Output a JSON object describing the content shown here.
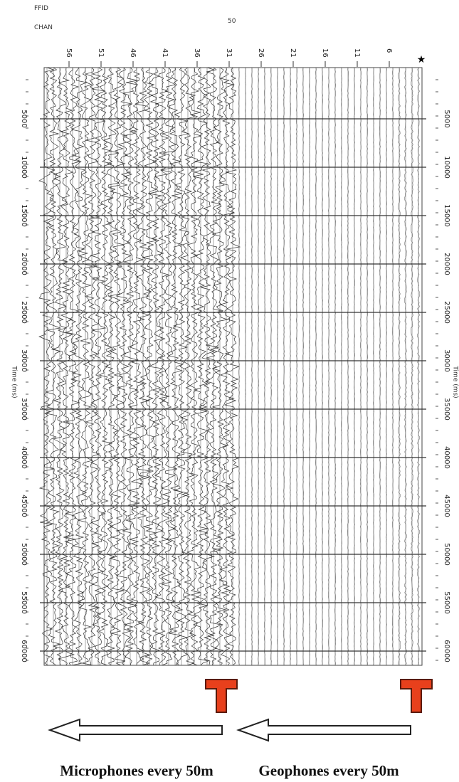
{
  "header": {
    "ffid": "FFID",
    "chan": "CHAN",
    "number": "50"
  },
  "channels": [
    56,
    51,
    46,
    41,
    36,
    31,
    26,
    21,
    16,
    11,
    6
  ],
  "time_axis": {
    "label": "Time (ms)",
    "ticks": [
      5000,
      10000,
      15000,
      20000,
      25000,
      30000,
      35000,
      40000,
      45000,
      50000,
      55000,
      60000
    ]
  },
  "captions": [
    "Microphones every 50m",
    "Geophones every 50m"
  ]
}
